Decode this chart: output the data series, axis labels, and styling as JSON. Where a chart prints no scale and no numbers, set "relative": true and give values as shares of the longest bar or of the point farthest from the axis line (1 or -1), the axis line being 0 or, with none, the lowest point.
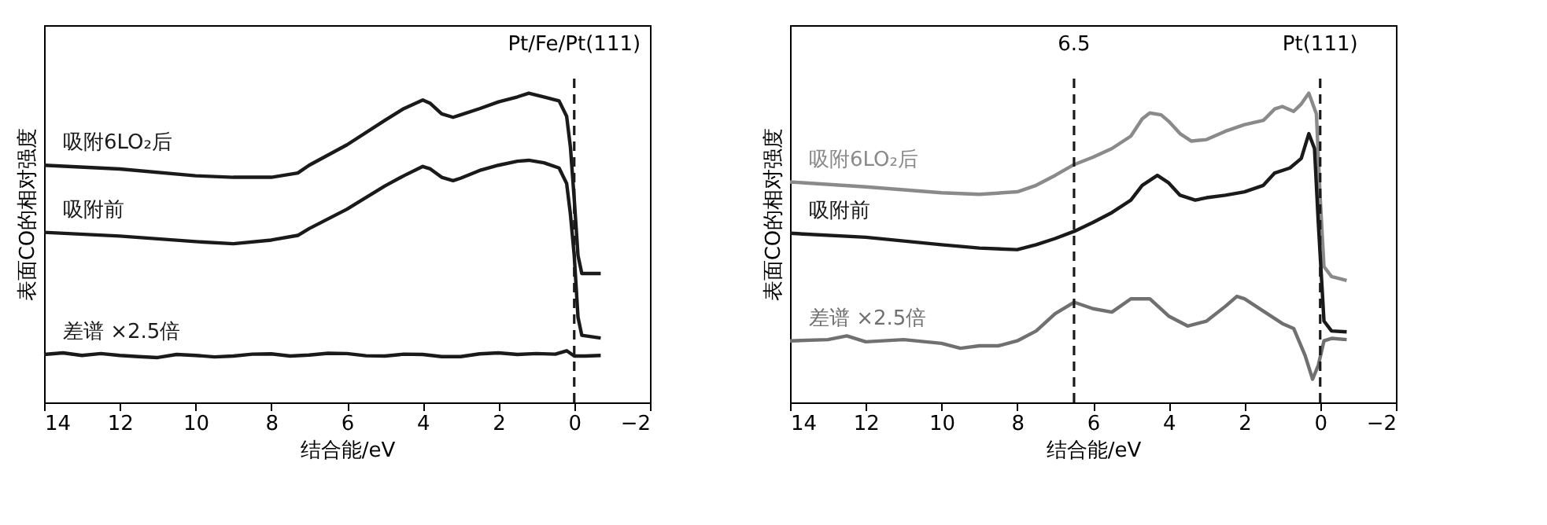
{
  "chart_data": [
    {
      "type": "line",
      "relative": true,
      "xlabel": "结合能/eV",
      "ylabel": "表面CO的相对强度",
      "xlim": [
        14,
        -2
      ],
      "xticks": [
        14,
        12,
        10,
        8,
        6,
        4,
        2,
        0,
        {
          "value": -2,
          "label": "−2"
        }
      ],
      "grid": false,
      "line_style": "solid",
      "marker": "none",
      "x": [
        14,
        12,
        10,
        9,
        8,
        7.3,
        7,
        6,
        5,
        4.5,
        4,
        3.8,
        3.5,
        3.2,
        3,
        2.5,
        2,
        1.5,
        1.2,
        0.8,
        0.4,
        0.2,
        0.1,
        0,
        -0.1,
        -0.2,
        -0.7
      ],
      "series": [
        {
          "name": "吸附6LO₂后",
          "color": "#1a1a1a",
          "values": [
            0.767,
            0.755,
            0.733,
            0.728,
            0.728,
            0.742,
            0.767,
            0.833,
            0.912,
            0.95,
            0.978,
            0.967,
            0.933,
            0.922,
            0.93,
            0.95,
            0.972,
            0.988,
            1.0,
            0.988,
            0.975,
            0.925,
            0.825,
            0.658,
            0.475,
            0.417,
            0.417
          ]
        },
        {
          "name": "吸附前",
          "color": "#1a1a1a",
          "values": [
            0.55,
            0.538,
            0.52,
            0.513,
            0.525,
            0.54,
            0.562,
            0.625,
            0.7,
            0.733,
            0.763,
            0.755,
            0.728,
            0.717,
            0.725,
            0.75,
            0.767,
            0.78,
            0.783,
            0.775,
            0.758,
            0.708,
            0.608,
            0.475,
            0.275,
            0.217,
            0.208
          ]
        },
        {
          "name": "差谱 ×2.5倍",
          "color": "#1a1a1a",
          "x": [
            14,
            13.5,
            13,
            12.5,
            12,
            11.5,
            11,
            10.5,
            10,
            9.5,
            9,
            8.5,
            8,
            7.5,
            7,
            6.5,
            6,
            5.5,
            5,
            4.5,
            4,
            3.5,
            3,
            2.5,
            2,
            1.5,
            1,
            0.5,
            0.2,
            0,
            -0.3,
            -0.7
          ],
          "values": [
            0.155,
            0.16,
            0.152,
            0.158,
            0.152,
            0.148,
            0.145,
            0.155,
            0.152,
            0.147,
            0.15,
            0.156,
            0.157,
            0.15,
            0.153,
            0.159,
            0.158,
            0.151,
            0.15,
            0.156,
            0.155,
            0.148,
            0.148,
            0.157,
            0.16,
            0.155,
            0.158,
            0.156,
            0.167,
            0.15,
            0.15,
            0.152
          ]
        }
      ],
      "ref_lines": [
        {
          "axis": "x",
          "value": 0,
          "label": "Pt/Fe/Pt(111)",
          "line_style": "dashed",
          "color": "#1a1a1a"
        }
      ]
    },
    {
      "type": "line",
      "relative": true,
      "xlabel": "结合能/eV",
      "ylabel": "表面CO的相对强度",
      "xlim": [
        14,
        -2
      ],
      "xticks": [
        14,
        12,
        10,
        8,
        6,
        4,
        2,
        0,
        {
          "value": -2,
          "label": "−2"
        }
      ],
      "grid": false,
      "line_style": "solid",
      "marker": "none",
      "series": [
        {
          "name": "吸附6LO₂后",
          "color": "#8a8a8a",
          "x": [
            14,
            12,
            10,
            9,
            8,
            7.5,
            7,
            6.5,
            6,
            5.5,
            5,
            4.7,
            4.5,
            4.2,
            4,
            3.7,
            3.4,
            3,
            2.5,
            2,
            1.5,
            1.2,
            1,
            0.7,
            0.5,
            0.3,
            0.1,
            0,
            -0.1,
            -0.3,
            -0.7
          ],
          "values": [
            0.713,
            0.697,
            0.678,
            0.673,
            0.681,
            0.702,
            0.734,
            0.769,
            0.793,
            0.821,
            0.861,
            0.917,
            0.936,
            0.93,
            0.909,
            0.869,
            0.845,
            0.85,
            0.877,
            0.898,
            0.912,
            0.949,
            0.957,
            0.941,
            0.965,
            1.0,
            0.933,
            0.662,
            0.439,
            0.407,
            0.394
          ]
        },
        {
          "name": "吸附前",
          "color": "#1a1a1a",
          "x": [
            14,
            12,
            10,
            9,
            8,
            7.5,
            7,
            6.5,
            6,
            5.5,
            5,
            4.7,
            4.3,
            4,
            3.7,
            3.3,
            3,
            2.5,
            2,
            1.5,
            1.2,
            0.8,
            0.5,
            0.3,
            0.15,
            0.05,
            -0.1,
            -0.3,
            -0.7
          ],
          "values": [
            0.547,
            0.534,
            0.51,
            0.499,
            0.494,
            0.51,
            0.53,
            0.553,
            0.582,
            0.614,
            0.654,
            0.702,
            0.734,
            0.71,
            0.67,
            0.654,
            0.662,
            0.67,
            0.681,
            0.702,
            0.742,
            0.758,
            0.789,
            0.869,
            0.821,
            0.582,
            0.263,
            0.231,
            0.228
          ]
        },
        {
          "name": "差谱 ×2.5倍",
          "color": "#707070",
          "x": [
            14,
            13,
            12.5,
            12,
            11,
            10,
            9.5,
            9,
            8.5,
            8,
            7.5,
            7,
            6.5,
            6,
            5.5,
            5,
            4.5,
            4,
            3.5,
            3,
            2.5,
            2.2,
            2,
            1.5,
            1,
            0.7,
            0.4,
            0.2,
            0.05,
            -0.1,
            -0.3,
            -0.7
          ],
          "values": [
            0.199,
            0.203,
            0.215,
            0.196,
            0.203,
            0.191,
            0.175,
            0.183,
            0.183,
            0.199,
            0.231,
            0.287,
            0.324,
            0.303,
            0.292,
            0.335,
            0.335,
            0.279,
            0.247,
            0.263,
            0.311,
            0.343,
            0.335,
            0.295,
            0.255,
            0.239,
            0.152,
            0.075,
            0.12,
            0.199,
            0.207,
            0.203
          ]
        }
      ],
      "ref_lines": [
        {
          "axis": "x",
          "value": 6.5,
          "label": "6.5",
          "line_style": "dashed",
          "color": "#1a1a1a"
        },
        {
          "axis": "x",
          "value": 0,
          "label": "Pt(111)",
          "line_style": "dashed",
          "color": "#1a1a1a"
        }
      ]
    }
  ]
}
